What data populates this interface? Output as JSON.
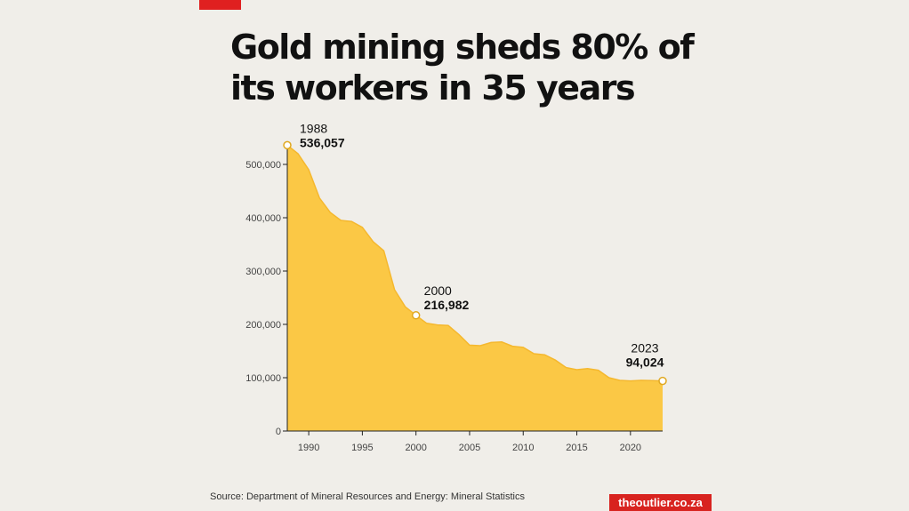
{
  "accent_color": "#e02020",
  "title_lines": [
    "Gold mining sheds 80% of",
    "its workers in 35 years"
  ],
  "source": "Source: Department of Mineral Resources and Energy: Mineral Statistics",
  "brand": "theoutlier.co.za",
  "chart_data": {
    "type": "area",
    "title": "Gold mining sheds 80% of its workers in 35 years",
    "xlabel": "",
    "ylabel": "",
    "fill_color": "#fbc845",
    "line_color": "#f5b82e",
    "grid": false,
    "xlim": [
      1988,
      2023
    ],
    "ylim": [
      0,
      500000
    ],
    "y_ticks": [
      0,
      100000,
      200000,
      300000,
      400000,
      500000
    ],
    "y_tick_labels": [
      "0",
      "100,000",
      "200,000",
      "300,000",
      "400,000",
      "500,000"
    ],
    "x_ticks": [
      1990,
      1995,
      2000,
      2005,
      2010,
      2015,
      2020
    ],
    "x_tick_labels": [
      "1990",
      "1995",
      "2000",
      "2005",
      "2010",
      "2015",
      "2020"
    ],
    "x": [
      1988,
      1989,
      1990,
      1991,
      1992,
      1993,
      1994,
      1995,
      1996,
      1997,
      1998,
      1999,
      2000,
      2001,
      2002,
      2003,
      2004,
      2005,
      2006,
      2007,
      2008,
      2009,
      2010,
      2011,
      2012,
      2013,
      2014,
      2015,
      2016,
      2017,
      2018,
      2019,
      2020,
      2021,
      2022,
      2023
    ],
    "y": [
      536057,
      520000,
      490000,
      437000,
      410000,
      395000,
      393000,
      382000,
      355000,
      338000,
      265000,
      233000,
      216982,
      202000,
      199000,
      198000,
      181000,
      161000,
      160000,
      166000,
      167000,
      159000,
      157000,
      145000,
      143000,
      133000,
      119000,
      115000,
      117000,
      114000,
      100000,
      95000,
      94000,
      95000,
      94500,
      94024
    ],
    "annotations": [
      {
        "x": 1988,
        "y": 536057,
        "year": "1988",
        "value": "536,057"
      },
      {
        "x": 2000,
        "y": 216982,
        "year": "2000",
        "value": "216,982"
      },
      {
        "x": 2023,
        "y": 94024,
        "year": "2023",
        "value": "94,024"
      }
    ]
  }
}
